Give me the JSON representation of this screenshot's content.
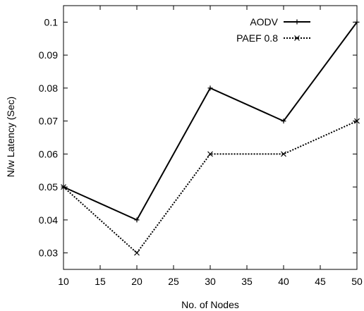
{
  "chart_data": {
    "type": "line",
    "title": "",
    "xlabel": "No. of Nodes",
    "ylabel": "N/w Latency (Sec)",
    "xlim": [
      10,
      50
    ],
    "ylim": [
      0.025,
      0.105
    ],
    "x_ticks": [
      "10",
      "15",
      "20",
      "25",
      "30",
      "35",
      "40",
      "45",
      "50"
    ],
    "y_ticks": [
      "0.03",
      "0.04",
      "0.05",
      "0.06",
      "0.07",
      "0.08",
      "0.09",
      "0.1"
    ],
    "grid": false,
    "legend_position": "top-right",
    "x": [
      10,
      20,
      30,
      40,
      50
    ],
    "series": [
      {
        "name": "AODV",
        "values": [
          0.05,
          0.04,
          0.08,
          0.07,
          0.1
        ],
        "color": "#000000",
        "line_style": "solid",
        "marker": "plus"
      },
      {
        "name": "PAEF 0.8",
        "values": [
          0.05,
          0.03,
          0.06,
          0.06,
          0.07
        ],
        "color": "#000000",
        "line_style": "dotted",
        "marker": "cross"
      }
    ]
  }
}
